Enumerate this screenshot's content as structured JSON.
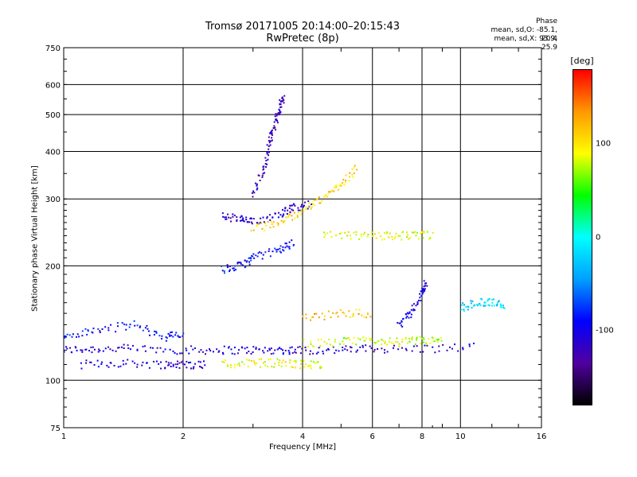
{
  "header": {
    "title": "Tromsø 20171005 20:14:00–20:15:43",
    "subtitle": "RwPretec (8p)",
    "phase_title": "Phase",
    "stat_o": "mean, sd,O: -85.1, 20.4",
    "stat_x": "mean, sd,X:  93.9, 25.9"
  },
  "colorbar": {
    "unit": "[deg]",
    "ticks": [
      {
        "value": 100,
        "label": "100"
      },
      {
        "value": 0,
        "label": "0"
      },
      {
        "value": -100,
        "label": "-100"
      }
    ],
    "range": [
      -180,
      180
    ],
    "stops": [
      "#000000",
      "#5000a0",
      "#0000ff",
      "#00a0ff",
      "#00ffff",
      "#00ff00",
      "#ffff00",
      "#ff9900",
      "#ff0000"
    ]
  },
  "chart_data": {
    "type": "scatter",
    "title": "Tromsø 20171005 20:14:00–20:15:43",
    "subtitle": "RwPretec (8p)",
    "xlabel": "Frequency [MHz]",
    "ylabel": "Stationary phase Virtual Height [km]",
    "x_scale": "log",
    "y_scale": "log",
    "xlim": [
      1,
      16
    ],
    "ylim": [
      75,
      750
    ],
    "x_ticks": [
      1,
      2,
      4,
      6,
      8,
      10,
      16
    ],
    "x_tick_labels": [
      "1",
      "2",
      "4",
      "6",
      "8",
      "10",
      "16"
    ],
    "y_ticks": [
      75,
      100,
      200,
      300,
      400,
      500,
      600,
      750
    ],
    "y_tick_labels": [
      "75",
      "100",
      "200",
      "300",
      "400",
      "500",
      "600",
      "750"
    ],
    "grid": true,
    "color_variable": "Phase [deg]",
    "traces": [
      {
        "name": "O",
        "phase": -110,
        "f": [
          1.0,
          1.2,
          1.5,
          2.0,
          2.5,
          3.0,
          3.5,
          4.0,
          5.0,
          6.0,
          8.0,
          11.0
        ],
        "h": [
          120,
          121,
          121,
          120,
          120,
          120,
          120,
          120,
          120,
          121,
          121,
          122
        ]
      },
      {
        "name": "O",
        "phase": -110,
        "f": [
          1.1,
          1.4,
          1.8,
          2.0,
          2.3
        ],
        "h": [
          110,
          111,
          110,
          110,
          110
        ]
      },
      {
        "name": "O",
        "phase": -90,
        "f": [
          1.0,
          1.2,
          1.5,
          1.8,
          2.0
        ],
        "h": [
          130,
          135,
          140,
          130,
          132
        ]
      },
      {
        "name": "O",
        "phase": -110,
        "f": [
          2.5,
          2.8,
          3.0,
          3.5,
          3.8,
          4.2
        ],
        "h": [
          270,
          265,
          260,
          275,
          285,
          290
        ]
      },
      {
        "name": "O",
        "phase": -90,
        "f": [
          2.5,
          2.8,
          3.0,
          3.5,
          3.8
        ],
        "h": [
          195,
          200,
          210,
          220,
          230
        ]
      },
      {
        "name": "O",
        "phase": -120,
        "f": [
          3.0,
          3.2,
          3.3,
          3.4,
          3.5,
          3.6
        ],
        "h": [
          310,
          360,
          420,
          470,
          520,
          560
        ]
      },
      {
        "name": "X",
        "phase": 110,
        "f": [
          3.0,
          3.5,
          4.0,
          4.5,
          5.0,
          5.5
        ],
        "h": [
          250,
          260,
          280,
          300,
          330,
          360
        ]
      },
      {
        "name": "X",
        "phase": 90,
        "f": [
          2.5,
          3.0,
          3.5,
          4.0,
          4.5
        ],
        "h": [
          110,
          111,
          111,
          110,
          110
        ]
      },
      {
        "name": "X",
        "phase": 80,
        "f": [
          4.0,
          5.0,
          6.0,
          7.0,
          8.0,
          9.0
        ],
        "h": [
          125,
          126,
          127,
          126,
          127,
          127
        ]
      },
      {
        "name": "X",
        "phase": 90,
        "f": [
          4.5,
          5.5,
          6.5,
          7.5,
          8.5
        ],
        "h": [
          240,
          240,
          240,
          240,
          240
        ]
      },
      {
        "name": "X",
        "phase": 120,
        "f": [
          4.0,
          5.0,
          6.0
        ],
        "h": [
          145,
          150,
          150
        ]
      },
      {
        "name": "O",
        "phase": -100,
        "f": [
          7.0,
          7.5,
          8.0,
          8.2
        ],
        "h": [
          140,
          150,
          170,
          180
        ]
      },
      {
        "name": "O",
        "phase": -20,
        "f": [
          10.0,
          11.0,
          12.0,
          13.0
        ],
        "h": [
          155,
          160,
          160,
          158
        ]
      }
    ]
  }
}
